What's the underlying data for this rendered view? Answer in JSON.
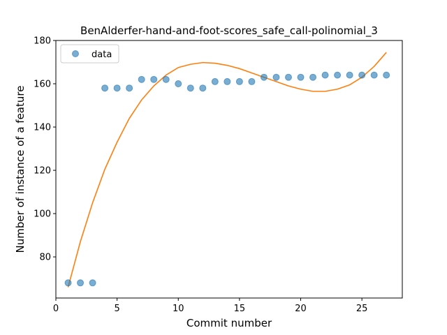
{
  "chart_data": {
    "type": "scatter",
    "title": "BenAlderfer-hand-and-foot-scores_safe_call-polinomial_3",
    "xlabel": "Commit number",
    "ylabel": "Number of instance of a feature",
    "xlim": [
      0,
      28.3
    ],
    "ylim": [
      61,
      180
    ],
    "x_ticks": [
      0,
      5,
      10,
      15,
      20,
      25
    ],
    "y_ticks": [
      80,
      100,
      120,
      140,
      160,
      180
    ],
    "grid": false,
    "legend_position": "top-left",
    "series": [
      {
        "name": "data",
        "kind": "scatter",
        "color": "#1f77b4",
        "x": [
          1,
          2,
          3,
          4,
          5,
          6,
          7,
          8,
          9,
          10,
          11,
          12,
          13,
          14,
          15,
          16,
          17,
          18,
          19,
          20,
          21,
          22,
          23,
          24,
          25,
          26,
          27
        ],
        "y": [
          68,
          68,
          68,
          158,
          158,
          158,
          162,
          162,
          162,
          160,
          158,
          158,
          161,
          161,
          161,
          161,
          163,
          163,
          163,
          163,
          163,
          164,
          164,
          164,
          164,
          164,
          164
        ]
      },
      {
        "kind": "line",
        "color": "#ff7f0e",
        "x": [
          1,
          2,
          3,
          4,
          5,
          6,
          7,
          8,
          9,
          10,
          11,
          12,
          13,
          14,
          15,
          16,
          17,
          18,
          19,
          20,
          21,
          22,
          23,
          24,
          25,
          26,
          27
        ],
        "y": [
          66,
          87,
          105,
          120.5,
          133,
          144,
          152.5,
          159,
          164,
          167.5,
          169,
          169.8,
          169.5,
          168.5,
          167,
          165,
          163,
          161,
          159,
          157.5,
          156.5,
          156.5,
          157.5,
          159.5,
          163,
          168,
          174.5
        ]
      }
    ]
  }
}
